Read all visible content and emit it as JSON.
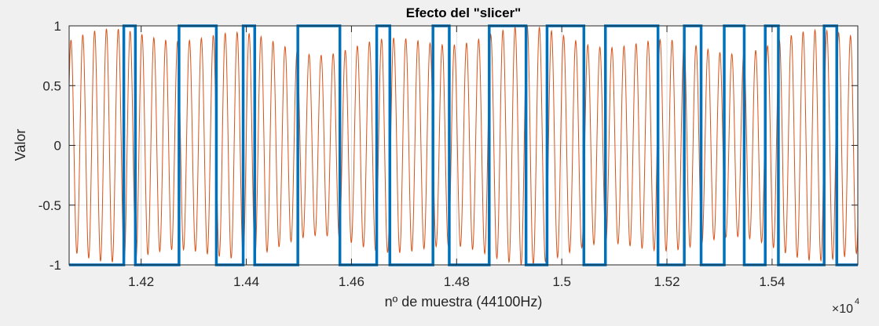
{
  "chart_data": {
    "type": "line",
    "title": "Efecto del \"slicer\"",
    "xlabel": "nº de muestra (44100Hz)",
    "ylabel": "Valor",
    "x_exponent_label": "×10",
    "x_exponent_power": "4",
    "xlim": [
      1.4063,
      1.5563
    ],
    "ylim": [
      -1,
      1
    ],
    "x_scale_factor": 10000,
    "xticks": [
      1.42,
      1.44,
      1.46,
      1.48,
      1.5,
      1.52,
      1.54
    ],
    "xtick_labels": [
      "1.42",
      "1.44",
      "1.46",
      "1.48",
      "1.5",
      "1.52",
      "1.54"
    ],
    "yticks": [
      1,
      0.5,
      0,
      -0.5,
      -1
    ],
    "ytick_labels": [
      "1",
      "0.5",
      "0",
      "-0.5",
      "-1"
    ],
    "grid": true,
    "series": [
      {
        "color": "#d95319",
        "style": "oscillating signal",
        "approx_period_x": 0.00228,
        "amplitude_range": [
          0.75,
          1.0
        ]
      },
      {
        "color": "#0072bd",
        "style": "square",
        "x": [
          1.4063,
          1.4167,
          1.4167,
          1.4189,
          1.4189,
          1.4272,
          1.4272,
          1.4343,
          1.4343,
          1.4394,
          1.4394,
          1.4416,
          1.4416,
          1.4498,
          1.4498,
          1.4578,
          1.4578,
          1.4648,
          1.4648,
          1.4673,
          1.4673,
          1.4755,
          1.4755,
          1.4786,
          1.4786,
          1.4862,
          1.4862,
          1.4932,
          1.4932,
          1.4972,
          1.4972,
          1.5042,
          1.5042,
          1.5083,
          1.5083,
          1.5183,
          1.5183,
          1.5233,
          1.5233,
          1.5265,
          1.5265,
          1.5309,
          1.5309,
          1.5347,
          1.5347,
          1.5387,
          1.5387,
          1.5412,
          1.5412,
          1.5499,
          1.5499,
          1.5523,
          1.5523,
          1.5563
        ],
        "y": [
          -1,
          -1,
          1,
          1,
          -1,
          -1,
          1,
          1,
          -1,
          -1,
          1,
          1,
          -1,
          -1,
          1,
          1,
          -1,
          -1,
          1,
          1,
          -1,
          -1,
          1,
          1,
          -1,
          -1,
          1,
          1,
          -1,
          -1,
          1,
          1,
          -1,
          -1,
          1,
          1,
          -1,
          -1,
          1,
          1,
          -1,
          -1,
          1,
          1,
          -1,
          -1,
          1,
          1,
          -1,
          -1,
          1,
          1,
          -1,
          -1
        ]
      }
    ]
  }
}
